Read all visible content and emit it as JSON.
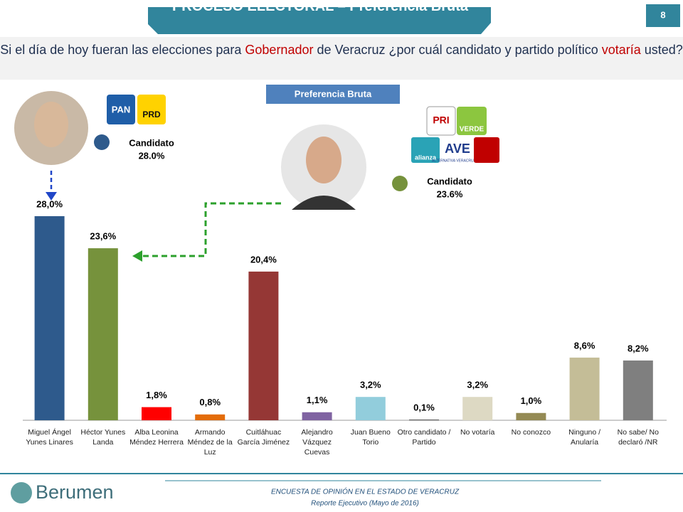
{
  "header": {
    "title": "PROCESO ELECTORAL – Preferencia Bruta",
    "page": "8"
  },
  "question": {
    "parts": [
      "Si el día de hoy fueran las elecciones para ",
      "Gobernador",
      " de Veracruz ¿por cuál candidato y partido político ",
      "votaría",
      " usted?"
    ]
  },
  "logos": {
    "left": [
      "PAN",
      "PRD"
    ],
    "right": [
      "PRI",
      "VERDE",
      "alianza",
      "AVE",
      "ALTERNATIVA VERACRUZANA"
    ]
  },
  "chart_data": {
    "type": "bar",
    "title": "Preferencia Bruta",
    "categories": [
      "Miguel Ángel Yunes Linares",
      "Héctor Yunes Landa",
      "Alba Leonina Méndez Herrera",
      "Armando Méndez de la Luz",
      "Cuitláhuac García Jiménez",
      "Alejandro Vázquez Cuevas",
      "Juan Bueno Torio",
      "Otro candidato / Partido",
      "No votaría",
      "No conozco",
      "Ninguno / Anularía",
      "No sabe/ No declaró /NR"
    ],
    "values": [
      28.0,
      23.6,
      1.8,
      0.8,
      20.4,
      1.1,
      3.2,
      0.1,
      3.2,
      1.0,
      8.6,
      8.2
    ],
    "value_labels": [
      "28,0%",
      "23,6%",
      "1,8%",
      "0,8%",
      "20,4%",
      "1,1%",
      "3,2%",
      "0,1%",
      "3,2%",
      "1,0%",
      "8,6%",
      "8,2%"
    ],
    "colors": [
      "#2e5a8c",
      "#76923c",
      "#ff0000",
      "#e36c09",
      "#953735",
      "#8064a2",
      "#92cddc",
      "#595959",
      "#ddd9c3",
      "#948a54",
      "#c4bd97",
      "#7f7f7f"
    ],
    "annotations": [
      {
        "text": "Candidato",
        "value": "28.0%"
      },
      {
        "text": "Candidato",
        "value": "23.6%"
      }
    ]
  },
  "footer": {
    "brand": "Berumen",
    "line1": "ENCUESTA DE OPINIÓN EN EL ESTADO DE VERACRUZ",
    "line2": "Reporte Ejecutivo (Mayo de 2016)"
  }
}
